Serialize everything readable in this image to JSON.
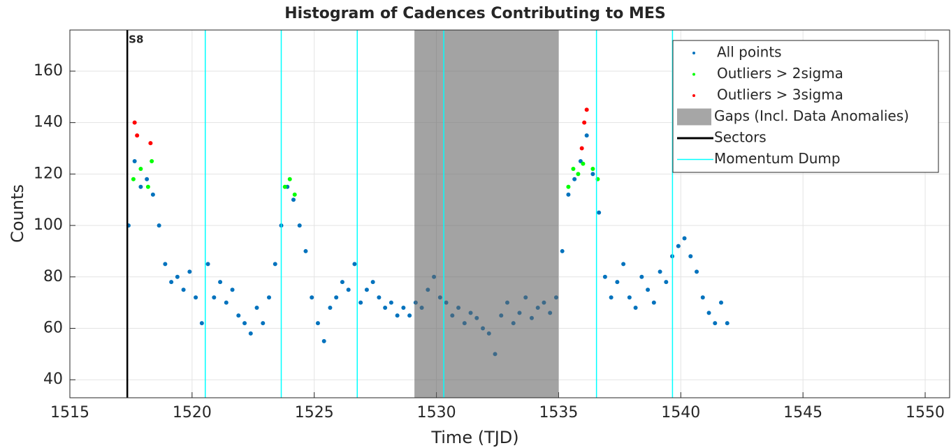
{
  "chart_data": {
    "type": "scatter",
    "title": "Histogram of Cadences Contributing to MES",
    "xlabel": "Time (TJD)",
    "ylabel": "Counts",
    "xlim": [
      1515,
      1551
    ],
    "ylim": [
      33,
      176
    ],
    "xticks": [
      1515,
      1520,
      1525,
      1530,
      1535,
      1540,
      1545,
      1550
    ],
    "yticks": [
      40,
      60,
      80,
      100,
      120,
      140,
      160
    ],
    "grid": true,
    "legend": "upper right",
    "series": [
      {
        "name": "All points",
        "color": "#0072bd",
        "x": [
          1517.4,
          1517.65,
          1517.9,
          1518.15,
          1518.4,
          1518.65,
          1518.9,
          1519.15,
          1519.4,
          1519.65,
          1519.9,
          1520.15,
          1520.4,
          1520.65,
          1520.9,
          1521.15,
          1521.4,
          1521.65,
          1521.9,
          1522.15,
          1522.4,
          1522.65,
          1522.9,
          1523.15,
          1523.4,
          1523.65,
          1523.9,
          1524.15,
          1524.4,
          1524.65,
          1524.9,
          1525.15,
          1525.4,
          1525.65,
          1525.9,
          1526.15,
          1526.4,
          1526.65,
          1526.9,
          1527.15,
          1527.4,
          1527.65,
          1527.9,
          1528.15,
          1528.4,
          1528.65,
          1528.9,
          1529.15,
          1529.4,
          1529.65,
          1529.9,
          1530.15,
          1530.4,
          1530.65,
          1530.9,
          1531.15,
          1531.4,
          1531.65,
          1531.9,
          1532.15,
          1532.4,
          1532.65,
          1532.9,
          1533.15,
          1533.4,
          1533.65,
          1533.9,
          1534.15,
          1534.4,
          1534.65,
          1534.9,
          1535.15,
          1535.4,
          1535.65,
          1535.9,
          1536.15,
          1536.4,
          1536.65,
          1536.9,
          1537.15,
          1537.4,
          1537.65,
          1537.9,
          1538.15,
          1538.4,
          1538.65,
          1538.9,
          1539.15,
          1539.4,
          1539.65,
          1539.9,
          1540.15,
          1540.4,
          1540.65,
          1540.9,
          1541.15,
          1541.4,
          1541.65,
          1541.9
        ],
        "values": [
          100,
          125,
          115,
          118,
          112,
          100,
          85,
          78,
          80,
          75,
          82,
          72,
          62,
          85,
          72,
          78,
          70,
          75,
          65,
          62,
          58,
          68,
          62,
          72,
          85,
          100,
          115,
          110,
          100,
          90,
          72,
          62,
          55,
          68,
          72,
          78,
          75,
          85,
          70,
          75,
          78,
          72,
          68,
          70,
          65,
          68,
          65,
          70,
          68,
          75,
          80,
          72,
          70,
          65,
          68,
          62,
          66,
          64,
          60,
          58,
          50,
          65,
          70,
          62,
          66,
          72,
          64,
          68,
          70,
          66,
          72,
          90,
          112,
          118,
          125,
          135,
          120,
          105,
          80,
          72,
          78,
          85,
          72,
          68,
          80,
          75,
          70,
          82,
          78,
          88,
          92,
          95,
          88,
          82,
          72,
          66,
          62,
          70,
          62
        ]
      },
      {
        "name": "Outliers > 2sigma",
        "color": "#00ff00",
        "x": [
          1517.6,
          1517.9,
          1518.2,
          1518.35,
          1523.8,
          1524.0,
          1524.2,
          1535.4,
          1535.6,
          1535.8,
          1536.0,
          1536.4,
          1536.6
        ],
        "values": [
          118,
          122,
          115,
          125,
          115,
          118,
          112,
          115,
          122,
          120,
          124,
          122,
          118
        ]
      },
      {
        "name": "Outliers > 3sigma",
        "color": "#ff0000",
        "x": [
          1517.65,
          1517.75,
          1518.3,
          1535.95,
          1536.05,
          1536.15
        ],
        "values": [
          140,
          135,
          132,
          130,
          140,
          145
        ]
      }
    ],
    "gaps": {
      "name": "Gaps (Incl. Data Anomalies)",
      "color": "#a6a6a6",
      "ranges": [
        [
          1529.1,
          1535.0
        ]
      ]
    },
    "sectors": {
      "name": "Sectors",
      "color": "#000000",
      "x": [
        1517.35
      ],
      "labels": [
        "S8"
      ]
    },
    "momentum_dumps": {
      "name": "Momentum Dump",
      "color": "#00ffff",
      "x": [
        1520.54,
        1523.65,
        1526.76,
        1530.3,
        1536.55,
        1539.66
      ]
    }
  }
}
